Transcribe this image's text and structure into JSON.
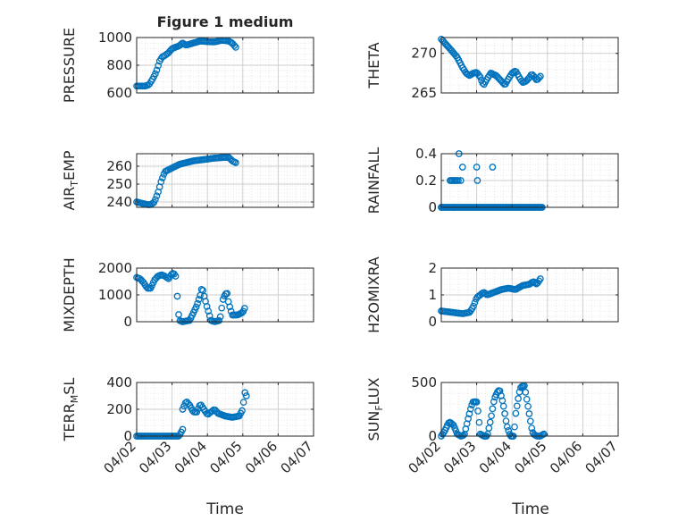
{
  "figure": {
    "title": "Figure 1 medium",
    "xlabel_left": "Time",
    "xlabel_right": "Time"
  },
  "colors": {
    "marker": "#0072BD",
    "grid_major": "#cccccc",
    "grid_minor": "#e2e2e2",
    "axis": "#262626"
  },
  "x_ticks": [
    "04/02",
    "04/03",
    "04/04",
    "04/05",
    "04/06",
    "04/07"
  ],
  "chart_data": [
    {
      "type": "scatter",
      "ylabel": "PRESSURE",
      "title": "Figure 1 medium",
      "ylim": [
        600,
        1000
      ],
      "yticks": [
        600,
        800,
        1000
      ],
      "grid": true,
      "x_range": [
        "04/02",
        "04/07"
      ],
      "shape": [
        [
          0,
          650
        ],
        [
          0.12,
          650
        ],
        [
          0.25,
          650
        ],
        [
          0.35,
          660
        ],
        [
          0.45,
          700
        ],
        [
          0.55,
          750
        ],
        [
          0.65,
          830
        ],
        [
          0.72,
          860
        ],
        [
          0.8,
          870
        ],
        [
          0.9,
          890
        ],
        [
          1.0,
          920
        ],
        [
          1.2,
          940
        ],
        [
          1.3,
          960
        ],
        [
          1.4,
          945
        ],
        [
          1.6,
          960
        ],
        [
          1.8,
          975
        ],
        [
          2.0,
          970
        ],
        [
          2.2,
          968
        ],
        [
          2.4,
          980
        ],
        [
          2.6,
          975
        ],
        [
          2.7,
          960
        ],
        [
          2.8,
          930
        ]
      ],
      "n_points": 70
    },
    {
      "type": "scatter",
      "ylabel": "THETA",
      "ylim": [
        265,
        272
      ],
      "yticks": [
        265,
        270
      ],
      "grid": true,
      "x_range": [
        "04/02",
        "04/07"
      ],
      "shape": [
        [
          0,
          271.8
        ],
        [
          0.1,
          271.3
        ],
        [
          0.2,
          270.8
        ],
        [
          0.3,
          270.3
        ],
        [
          0.45,
          269.5
        ],
        [
          0.6,
          268.2
        ],
        [
          0.7,
          267.5
        ],
        [
          0.8,
          267.2
        ],
        [
          0.9,
          267.5
        ],
        [
          1.0,
          267.6
        ],
        [
          1.1,
          267.0
        ],
        [
          1.15,
          266.4
        ],
        [
          1.2,
          266.0
        ],
        [
          1.3,
          266.8
        ],
        [
          1.4,
          267.5
        ],
        [
          1.55,
          267.2
        ],
        [
          1.7,
          266.5
        ],
        [
          1.8,
          266.0
        ],
        [
          1.9,
          266.8
        ],
        [
          2.0,
          267.5
        ],
        [
          2.1,
          267.8
        ],
        [
          2.2,
          267.0
        ],
        [
          2.3,
          266.3
        ],
        [
          2.4,
          266.5
        ],
        [
          2.5,
          267.0
        ],
        [
          2.55,
          267.4
        ],
        [
          2.6,
          267.2
        ],
        [
          2.7,
          266.6
        ],
        [
          2.8,
          267.1
        ]
      ],
      "n_points": 75
    },
    {
      "type": "scatter",
      "ylabel": "AIR_TEMP",
      "ylabel_main": "AIR",
      "ylabel_sub": "T",
      "ylabel_rest": "EMP",
      "ylim": [
        237,
        267
      ],
      "yticks": [
        240,
        250,
        260
      ],
      "grid": true,
      "x_range": [
        "04/02",
        "04/07"
      ],
      "shape": [
        [
          0,
          240
        ],
        [
          0.2,
          239
        ],
        [
          0.3,
          238.5
        ],
        [
          0.4,
          238.5
        ],
        [
          0.5,
          240
        ],
        [
          0.6,
          245
        ],
        [
          0.7,
          252
        ],
        [
          0.8,
          257
        ],
        [
          0.9,
          258
        ],
        [
          1.0,
          259
        ],
        [
          1.2,
          261
        ],
        [
          1.4,
          262
        ],
        [
          1.6,
          263
        ],
        [
          1.8,
          263.5
        ],
        [
          2.0,
          264
        ],
        [
          2.2,
          264.5
        ],
        [
          2.4,
          264.8
        ],
        [
          2.6,
          265
        ],
        [
          2.7,
          263
        ],
        [
          2.8,
          262
        ]
      ],
      "n_points": 70
    },
    {
      "type": "scatter",
      "ylabel": "RAINFALL",
      "ylim": [
        0,
        0.4
      ],
      "yticks": [
        0,
        0.2,
        0.4
      ],
      "yticklabels": [
        "0",
        "0.2",
        "0.4"
      ],
      "grid": true,
      "x_range": [
        "04/02",
        "04/07"
      ],
      "zeros_range": [
        0,
        2.85
      ],
      "n_zero_points": 95,
      "points": [
        [
          0.0,
          0
        ],
        [
          0.15,
          0
        ],
        [
          0.25,
          0.2
        ],
        [
          0.28,
          0.2
        ],
        [
          0.32,
          0.2
        ],
        [
          0.36,
          0.2
        ],
        [
          0.4,
          0.2
        ],
        [
          0.44,
          0.2
        ],
        [
          0.48,
          0.2
        ],
        [
          0.5,
          0.4
        ],
        [
          0.55,
          0.2
        ],
        [
          0.6,
          0.3
        ],
        [
          0.35,
          0
        ],
        [
          1.0,
          0.3
        ],
        [
          1.02,
          0.2
        ],
        [
          1.45,
          0.3
        ]
      ]
    },
    {
      "type": "scatter",
      "ylabel": "MIXDEPTH",
      "ylim": [
        0,
        2000
      ],
      "yticks": [
        0,
        1000,
        2000
      ],
      "grid": true,
      "x_range": [
        "04/02",
        "04/07"
      ],
      "segments": [
        [
          [
            0,
            1650
          ],
          [
            0.1,
            1600
          ],
          [
            0.2,
            1450
          ],
          [
            0.3,
            1250
          ],
          [
            0.4,
            1250
          ],
          [
            0.5,
            1550
          ],
          [
            0.6,
            1700
          ],
          [
            0.7,
            1750
          ],
          [
            0.8,
            1700
          ],
          [
            0.9,
            1600
          ],
          [
            1.0,
            1800
          ],
          [
            1.05,
            1800
          ],
          [
            1.1,
            1700
          ]
        ],
        [
          [
            1.15,
            950
          ],
          [
            1.2,
            50
          ],
          [
            1.3,
            0
          ],
          [
            1.5,
            50
          ],
          [
            1.7,
            600
          ],
          [
            1.8,
            1000
          ],
          [
            1.85,
            1300
          ],
          [
            1.9,
            1000
          ],
          [
            2.0,
            500
          ],
          [
            2.1,
            50
          ],
          [
            2.2,
            0
          ],
          [
            2.35,
            50
          ],
          [
            2.45,
            900
          ],
          [
            2.55,
            1100
          ],
          [
            2.6,
            700
          ],
          [
            2.7,
            250
          ],
          [
            2.85,
            250
          ],
          [
            3.0,
            350
          ],
          [
            3.05,
            500
          ]
        ]
      ],
      "n_points": 80
    },
    {
      "type": "scatter",
      "ylabel": "H2OMIXRA",
      "ylim": [
        0,
        2
      ],
      "yticks": [
        0,
        1,
        2
      ],
      "grid": true,
      "x_range": [
        "04/02",
        "04/07"
      ],
      "shape": [
        [
          0,
          0.4
        ],
        [
          0.3,
          0.35
        ],
        [
          0.6,
          0.3
        ],
        [
          0.8,
          0.35
        ],
        [
          0.9,
          0.55
        ],
        [
          1.0,
          0.9
        ],
        [
          1.1,
          1.0
        ],
        [
          1.2,
          1.1
        ],
        [
          1.3,
          1.0
        ],
        [
          1.5,
          1.1
        ],
        [
          1.7,
          1.2
        ],
        [
          1.9,
          1.25
        ],
        [
          2.1,
          1.2
        ],
        [
          2.3,
          1.35
        ],
        [
          2.5,
          1.4
        ],
        [
          2.6,
          1.5
        ],
        [
          2.7,
          1.4
        ],
        [
          2.8,
          1.6
        ]
      ],
      "n_points": 75
    },
    {
      "type": "scatter",
      "ylabel": "TERR_MSL",
      "ylabel_main": "TERR",
      "ylabel_sub": "M",
      "ylabel_rest": "SL",
      "ylim": [
        0,
        400
      ],
      "yticks": [
        0,
        200,
        400
      ],
      "grid": true,
      "x_range": [
        "04/02",
        "04/07"
      ],
      "segments": [
        [
          [
            0,
            0
          ],
          [
            0.5,
            0
          ],
          [
            1.0,
            0
          ],
          [
            1.2,
            0
          ],
          [
            1.3,
            50
          ]
        ],
        [
          [
            1.3,
            200
          ],
          [
            1.4,
            260
          ],
          [
            1.5,
            230
          ],
          [
            1.6,
            180
          ],
          [
            1.7,
            180
          ],
          [
            1.8,
            240
          ],
          [
            1.9,
            200
          ],
          [
            2.0,
            160
          ],
          [
            2.1,
            180
          ],
          [
            2.2,
            200
          ],
          [
            2.3,
            170
          ],
          [
            2.5,
            150
          ],
          [
            2.7,
            140
          ],
          [
            2.9,
            150
          ],
          [
            3.0,
            200
          ],
          [
            3.05,
            330
          ],
          [
            3.1,
            300
          ]
        ]
      ],
      "n_points": 80
    },
    {
      "type": "scatter",
      "ylabel": "SUN_FLUX",
      "ylabel_main": "SUN",
      "ylabel_sub": "F",
      "ylabel_rest": "LUX",
      "ylim": [
        0,
        500
      ],
      "yticks": [
        0,
        500
      ],
      "grid": true,
      "x_range": [
        "04/02",
        "04/07"
      ],
      "shape": [
        [
          0,
          0
        ],
        [
          0.1,
          50
        ],
        [
          0.2,
          120
        ],
        [
          0.25,
          130
        ],
        [
          0.35,
          100
        ],
        [
          0.45,
          20
        ],
        [
          0.55,
          0
        ],
        [
          0.65,
          10
        ],
        [
          0.75,
          150
        ],
        [
          0.85,
          280
        ],
        [
          0.9,
          320
        ],
        [
          1.0,
          320
        ],
        [
          1.05,
          200
        ],
        [
          1.1,
          20
        ],
        [
          1.2,
          0
        ],
        [
          1.3,
          0
        ],
        [
          1.4,
          160
        ],
        [
          1.5,
          350
        ],
        [
          1.6,
          420
        ],
        [
          1.65,
          430
        ],
        [
          1.75,
          300
        ],
        [
          1.85,
          100
        ],
        [
          1.95,
          0
        ],
        [
          2.05,
          0
        ],
        [
          2.1,
          200
        ],
        [
          2.2,
          400
        ],
        [
          2.25,
          460
        ],
        [
          2.35,
          470
        ],
        [
          2.45,
          280
        ],
        [
          2.55,
          80
        ],
        [
          2.6,
          20
        ],
        [
          2.7,
          0
        ],
        [
          2.8,
          0
        ],
        [
          2.85,
          10
        ],
        [
          2.9,
          20
        ]
      ],
      "n_points": 85
    }
  ]
}
